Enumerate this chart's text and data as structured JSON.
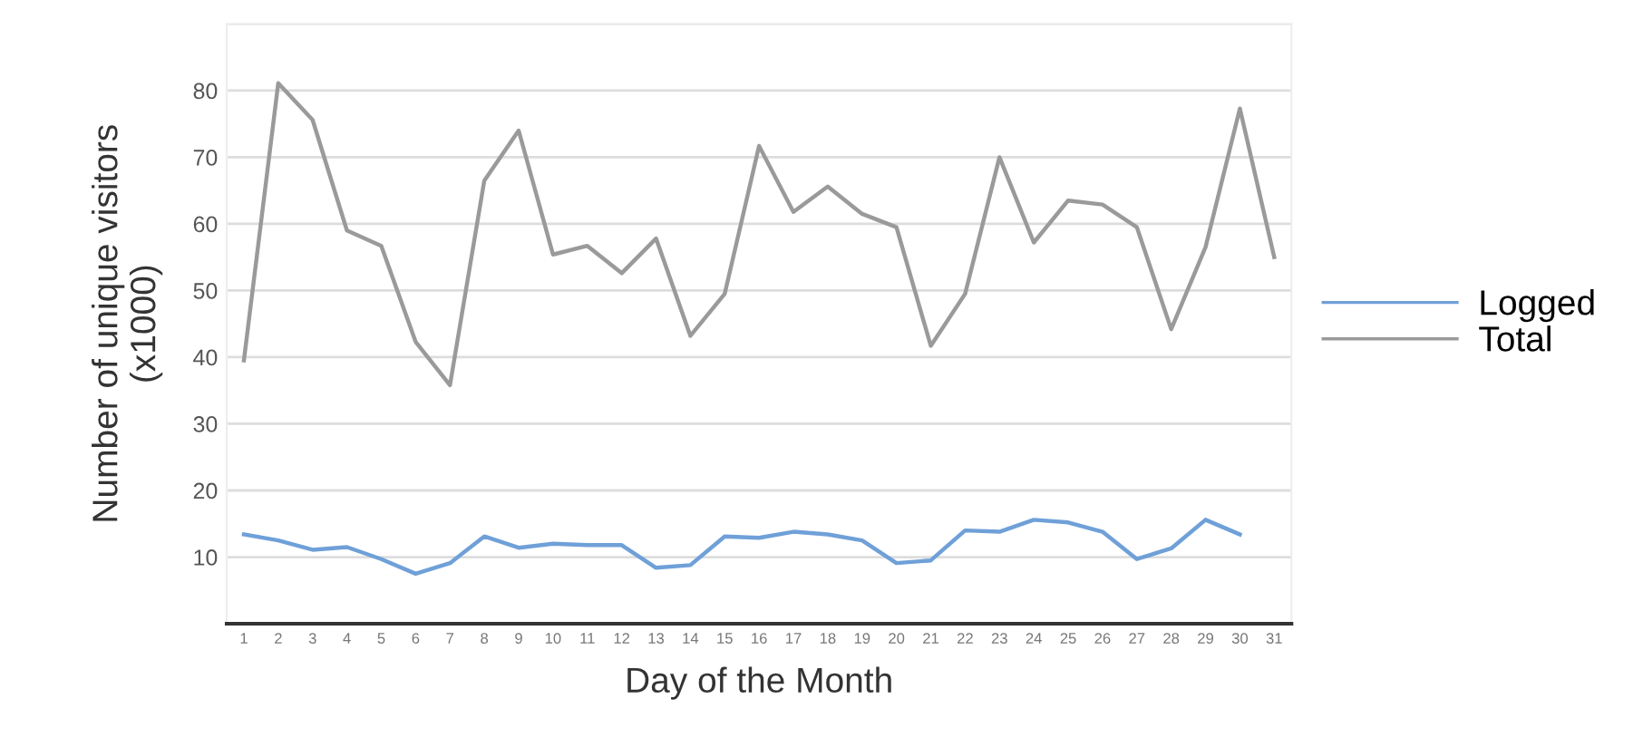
{
  "chart_data": {
    "type": "line",
    "xlabel": "Day of the Month",
    "ylabel": "Number of unique visitors\n(x1000)",
    "categories": [
      "1",
      "2",
      "3",
      "4",
      "5",
      "6",
      "7",
      "8",
      "9",
      "10",
      "11",
      "12",
      "13",
      "14",
      "15",
      "16",
      "17",
      "18",
      "19",
      "20",
      "21",
      "22",
      "23",
      "24",
      "25",
      "26",
      "27",
      "28",
      "29",
      "30",
      "31"
    ],
    "series": [
      {
        "name": "Logged",
        "color": "#6fa0d8",
        "values": [
          13.4,
          12.5,
          11.1,
          11.5,
          9.7,
          7.5,
          9.1,
          13.1,
          11.4,
          12.0,
          11.8,
          11.8,
          8.4,
          8.8,
          13.1,
          12.9,
          13.8,
          13.4,
          12.5,
          9.1,
          9.5,
          14.0,
          13.8,
          15.6,
          15.2,
          13.8,
          9.7,
          11.3,
          15.6,
          13.4,
          null
        ]
      },
      {
        "name": "Total",
        "color": "#9a9a9a",
        "values": [
          39.5,
          81.1,
          75.6,
          59.0,
          56.7,
          42.3,
          35.8,
          66.5,
          74.0,
          55.4,
          56.7,
          52.6,
          57.8,
          43.2,
          49.5,
          71.7,
          61.8,
          65.6,
          61.5,
          59.5,
          41.7,
          49.5,
          70.0,
          57.2,
          63.5,
          62.9,
          59.5,
          44.2,
          56.5,
          77.3,
          55.0
        ]
      }
    ],
    "ylim": [
      0,
      90
    ],
    "yticks": [
      {
        "value": 0,
        "label": null
      },
      10,
      20,
      30,
      40,
      50,
      60,
      70,
      80,
      {
        "value": 90,
        "label": null
      }
    ],
    "grid": "y",
    "legend": "right",
    "marker": "none",
    "line_style": "solid"
  }
}
